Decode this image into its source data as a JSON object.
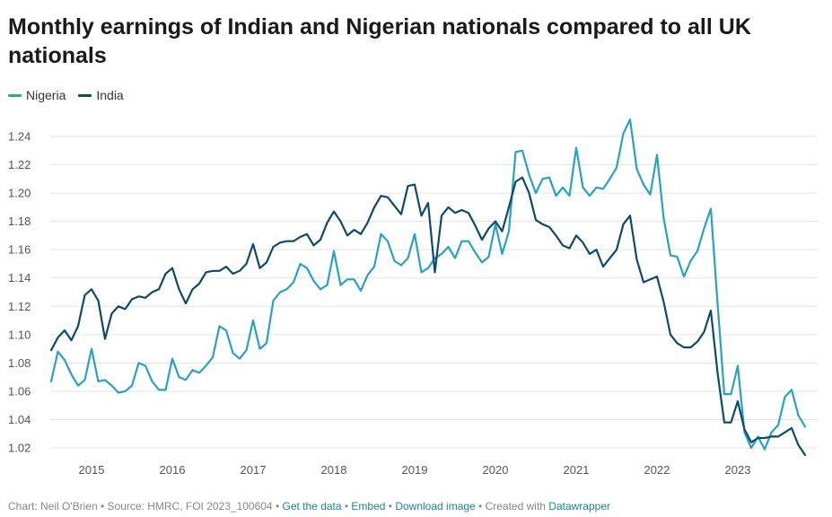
{
  "title": "Monthly earnings of Indian and Nigerian nationals compared to all UK nationals",
  "legend": [
    {
      "name": "Nigeria",
      "color": "#2aa0c3"
    },
    {
      "name": "India",
      "color": "#0e4a6b"
    }
  ],
  "footer": {
    "credit": "Chart: Neil O'Brien • Source: HMRC, FOI 2023_100604 • ",
    "get_data": "Get the data",
    "sep1": " • ",
    "embed": "Embed",
    "sep2": " • ",
    "download": "Download image",
    "created": " • Created with ",
    "datawrapper": "Datawrapper"
  },
  "chart_data": {
    "type": "line",
    "title": "Monthly earnings of Indian and Nigerian nationals compared to all UK nationals",
    "xlabel": "",
    "ylabel": "",
    "x_start": "2014-07",
    "x_ticks": [
      "2015",
      "2016",
      "2017",
      "2018",
      "2019",
      "2020",
      "2021",
      "2022",
      "2023"
    ],
    "y_ticks": [
      "1.02",
      "1.04",
      "1.06",
      "1.08",
      "1.10",
      "1.12",
      "1.14",
      "1.16",
      "1.18",
      "1.20",
      "1.22",
      "1.24"
    ],
    "ylim": [
      1.015,
      1.255
    ],
    "grid": true,
    "legend_position": "top-left",
    "series": [
      {
        "name": "Nigeria",
        "color": "#2aa0c3",
        "values": [
          1.067,
          1.088,
          1.082,
          1.072,
          1.064,
          1.068,
          1.09,
          1.067,
          1.068,
          1.064,
          1.059,
          1.06,
          1.064,
          1.08,
          1.078,
          1.067,
          1.061,
          1.061,
          1.083,
          1.07,
          1.068,
          1.075,
          1.073,
          1.078,
          1.084,
          1.106,
          1.103,
          1.087,
          1.083,
          1.089,
          1.11,
          1.09,
          1.094,
          1.124,
          1.13,
          1.132,
          1.137,
          1.15,
          1.147,
          1.138,
          1.132,
          1.135,
          1.159,
          1.135,
          1.139,
          1.139,
          1.131,
          1.142,
          1.148,
          1.171,
          1.166,
          1.152,
          1.149,
          1.154,
          1.171,
          1.144,
          1.147,
          1.154,
          1.157,
          1.162,
          1.154,
          1.166,
          1.166,
          1.158,
          1.151,
          1.155,
          1.178,
          1.157,
          1.173,
          1.229,
          1.23,
          1.213,
          1.2,
          1.21,
          1.211,
          1.198,
          1.204,
          1.198,
          1.232,
          1.204,
          1.198,
          1.204,
          1.203,
          1.21,
          1.218,
          1.242,
          1.252,
          1.217,
          1.206,
          1.199,
          1.227,
          1.182,
          1.156,
          1.155,
          1.141,
          1.152,
          1.159,
          1.175,
          1.189,
          1.122,
          1.058,
          1.058,
          1.078,
          1.031,
          1.02,
          1.028,
          1.019,
          1.031,
          1.036,
          1.056,
          1.061,
          1.043,
          1.035
        ]
      },
      {
        "name": "India",
        "color": "#0e4a6b",
        "values": [
          1.089,
          1.098,
          1.103,
          1.096,
          1.106,
          1.128,
          1.132,
          1.124,
          1.097,
          1.115,
          1.12,
          1.118,
          1.125,
          1.127,
          1.126,
          1.13,
          1.132,
          1.143,
          1.147,
          1.132,
          1.122,
          1.132,
          1.136,
          1.144,
          1.145,
          1.145,
          1.148,
          1.143,
          1.145,
          1.15,
          1.164,
          1.147,
          1.151,
          1.162,
          1.165,
          1.166,
          1.166,
          1.169,
          1.171,
          1.163,
          1.167,
          1.179,
          1.187,
          1.18,
          1.17,
          1.174,
          1.171,
          1.179,
          1.19,
          1.198,
          1.197,
          1.191,
          1.185,
          1.205,
          1.206,
          1.184,
          1.193,
          1.144,
          1.184,
          1.19,
          1.186,
          1.188,
          1.186,
          1.177,
          1.167,
          1.175,
          1.18,
          1.173,
          1.19,
          1.208,
          1.211,
          1.2,
          1.181,
          1.178,
          1.176,
          1.17,
          1.163,
          1.161,
          1.17,
          1.165,
          1.157,
          1.16,
          1.148,
          1.154,
          1.16,
          1.178,
          1.184,
          1.153,
          1.137,
          1.139,
          1.141,
          1.123,
          1.1,
          1.094,
          1.091,
          1.091,
          1.095,
          1.102,
          1.117,
          1.073,
          1.038,
          1.038,
          1.053,
          1.033,
          1.024,
          1.027,
          1.027,
          1.028,
          1.028,
          1.031,
          1.034,
          1.022,
          1.015
        ]
      }
    ]
  }
}
